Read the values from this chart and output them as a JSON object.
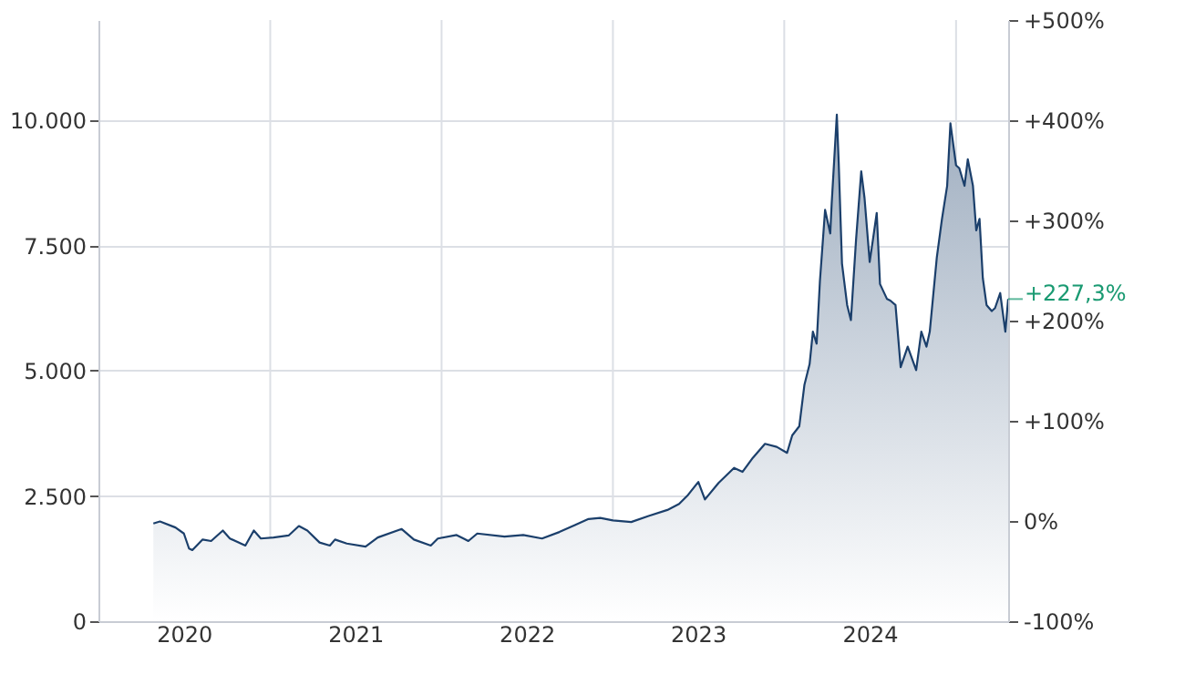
{
  "chart_data": {
    "type": "area",
    "x": [
      "2020-04-27",
      "2020-05-11",
      "2020-06-13",
      "2020-07-01",
      "2020-07-12",
      "2020-07-19",
      "2020-08-10",
      "2020-08-28",
      "2020-09-22",
      "2020-10-07",
      "2020-11-09",
      "2020-11-27",
      "2020-12-12",
      "2021-01-08",
      "2021-02-09",
      "2021-03-03",
      "2021-03-21",
      "2021-04-16",
      "2021-05-08",
      "2021-05-19",
      "2021-06-13",
      "2021-07-23",
      "2021-08-18",
      "2021-10-08",
      "2021-11-03",
      "2021-12-09",
      "2021-12-24",
      "2022-02-02",
      "2022-02-27",
      "2022-03-18",
      "2022-05-15",
      "2022-06-24",
      "2022-08-03",
      "2022-09-09",
      "2022-10-12",
      "2022-11-10",
      "2022-12-05",
      "2023-01-01",
      "2023-02-09",
      "2023-03-18",
      "2023-04-27",
      "2023-05-22",
      "2023-06-10",
      "2023-07-02",
      "2023-07-16",
      "2023-08-14",
      "2023-09-16",
      "2023-10-04",
      "2023-10-26",
      "2023-11-21",
      "2023-12-16",
      "2024-01-07",
      "2024-01-18",
      "2024-02-02",
      "2024-02-13",
      "2024-02-24",
      "2024-03-02",
      "2024-03-10",
      "2024-03-17",
      "2024-03-28",
      "2024-04-08",
      "2024-04-11",
      "2024-04-22",
      "2024-04-26",
      "2024-05-03",
      "2024-05-14",
      "2024-05-22",
      "2024-06-02",
      "2024-06-13",
      "2024-06-20",
      "2024-07-01",
      "2024-07-08",
      "2024-07-16",
      "2024-07-23",
      "2024-08-07",
      "2024-08-14",
      "2024-08-25",
      "2024-09-05",
      "2024-09-20",
      "2024-10-08",
      "2024-10-19",
      "2024-10-30",
      "2024-11-06",
      "2024-11-21",
      "2024-12-02",
      "2024-12-13",
      "2024-12-20",
      "2025-01-01",
      "2025-01-08",
      "2025-01-19",
      "2025-01-26",
      "2025-02-06",
      "2025-02-13",
      "2025-02-20",
      "2025-02-27",
      "2025-03-07",
      "2025-03-18",
      "2025-03-25",
      "2025-04-05",
      "2025-04-16",
      "2025-04-22"
    ],
    "series": [
      {
        "color": "#1b3f6b",
        "values": [
          1950,
          1990,
          1870,
          1750,
          1450,
          1420,
          1630,
          1600,
          1810,
          1650,
          1510,
          1810,
          1650,
          1670,
          1710,
          1900,
          1810,
          1570,
          1510,
          1630,
          1550,
          1490,
          1670,
          1840,
          1630,
          1510,
          1650,
          1720,
          1600,
          1750,
          1690,
          1720,
          1650,
          1780,
          1920,
          2040,
          2060,
          2010,
          1980,
          2100,
          2220,
          2340,
          2520,
          2780,
          2430,
          2760,
          3060,
          2980,
          3260,
          3540,
          3480,
          3360,
          3710,
          3890,
          4720,
          5130,
          5780,
          5540,
          6790,
          8210,
          7740,
          8330,
          10110,
          9160,
          7140,
          6310,
          6010,
          7620,
          8980,
          8450,
          7170,
          7620,
          8150,
          6730,
          6430,
          6400,
          6310,
          5070,
          5480,
          5010,
          5780,
          5480,
          5780,
          7260,
          8030,
          8690,
          9940,
          9100,
          9040,
          8690,
          9220,
          8690,
          7800,
          8030,
          6850,
          6310,
          6190,
          6250,
          6550,
          5780,
          6430
        ]
      }
    ],
    "xlim": [
      "2020-01-01",
      "2025-04-22"
    ],
    "xticks": [
      {
        "value": "2020-07-01",
        "label": "2020"
      },
      {
        "value": "2021-01-01",
        "label": null
      },
      {
        "value": "2021-07-01",
        "label": "2021"
      },
      {
        "value": "2022-01-01",
        "label": null
      },
      {
        "value": "2022-07-01",
        "label": "2022"
      },
      {
        "value": "2023-01-01",
        "label": null
      },
      {
        "value": "2023-07-01",
        "label": "2023"
      },
      {
        "value": "2024-01-01",
        "label": null
      },
      {
        "value": "2024-07-01",
        "label": "2024"
      },
      {
        "value": "2025-01-01",
        "label": null
      }
    ],
    "ylim": [
      0,
      12000
    ],
    "yticks": [
      {
        "value": 0,
        "label": "0"
      },
      {
        "value": 2500,
        "label": "2.500"
      },
      {
        "value": 5000,
        "label": "5.000"
      },
      {
        "value": 7500,
        "label": "7.500"
      },
      {
        "value": 10000,
        "label": "10.000"
      }
    ],
    "y2lim": [
      -100,
      500
    ],
    "y2ticks": [
      {
        "value": -100,
        "label": "-100%"
      },
      {
        "value": 0,
        "label": "0%"
      },
      {
        "value": 100,
        "label": "+100%"
      },
      {
        "value": 200,
        "label": "+200%"
      },
      {
        "value": 300,
        "label": "+300%"
      },
      {
        "value": 400,
        "label": "+400%"
      },
      {
        "value": 500,
        "label": "+500%"
      }
    ],
    "annotations": [
      "+227,3%"
    ],
    "grid": true
  }
}
